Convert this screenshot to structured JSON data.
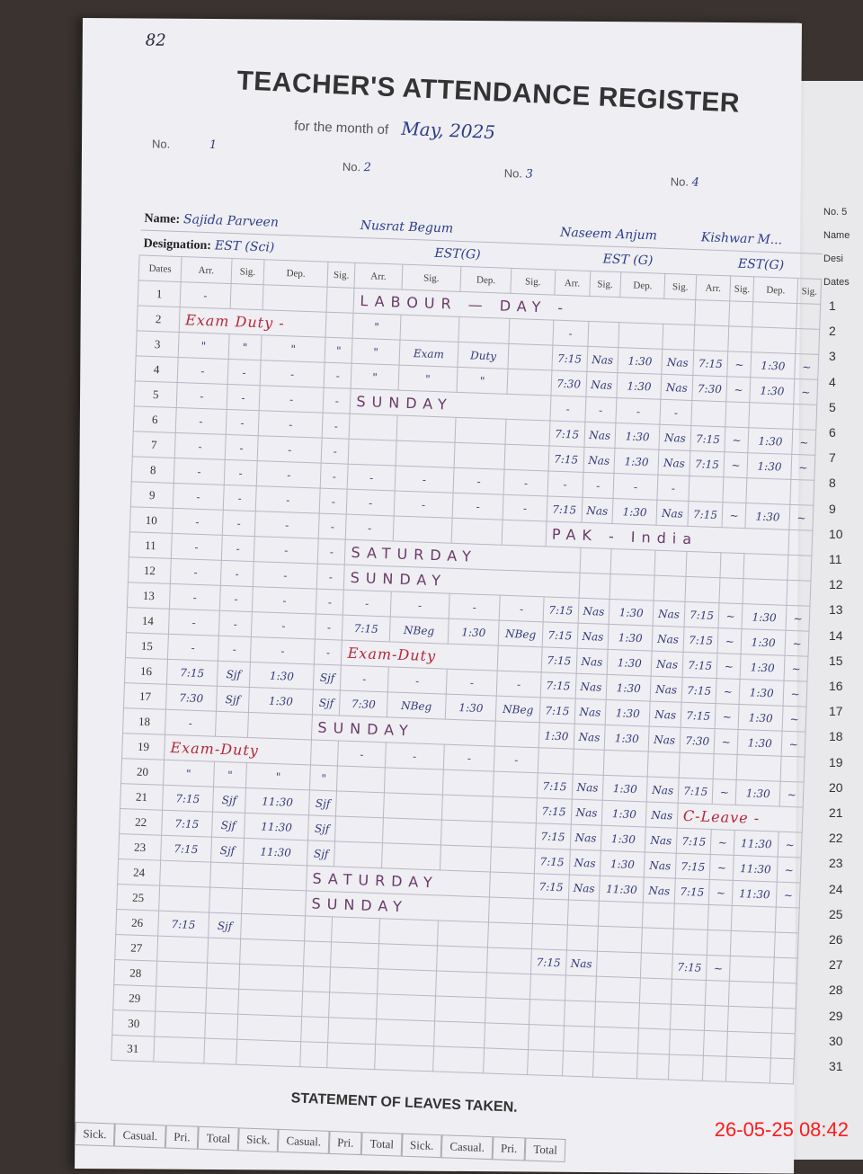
{
  "page_number": "82",
  "title": "TEACHER'S ATTENDANCE REGISTER",
  "month_label": "for the month of",
  "month_value": "May, 2025",
  "teacher_numbers": [
    {
      "label": "No.",
      "value": "1"
    },
    {
      "label": "No.",
      "value": "2"
    },
    {
      "label": "No.",
      "value": "3"
    },
    {
      "label": "No.",
      "value": "4"
    }
  ],
  "name_label": "Name:",
  "designation_label": "Designation:",
  "teachers": [
    {
      "name": "Sajida Parveen",
      "designation": "EST (Sci)"
    },
    {
      "name": "Nusrat Begum",
      "designation": "EST(G)"
    },
    {
      "name": "Naseem Anjum",
      "designation": "EST (G)"
    },
    {
      "name": "Kishwar M...",
      "designation": "EST(G)"
    }
  ],
  "columns": [
    "Dates",
    "Arr.",
    "Sig.",
    "Dep.",
    "Sig.",
    "Arr.",
    "Sig.",
    "Dep.",
    "Sig.",
    "Arr.",
    "Sig.",
    "Dep.",
    "Sig.",
    "Arr.",
    "Sig.",
    "Dep.",
    "Sig."
  ],
  "rows": [
    {
      "d": "1",
      "c": [
        "-",
        "",
        "",
        "",
        "",
        "",
        "",
        "",
        "",
        "",
        "",
        "",
        "",
        "",
        "",
        ""
      ],
      "notes": [
        {
          "from": 5,
          "span": 8,
          "text": "LABOUR — DAY -"
        }
      ]
    },
    {
      "d": "2",
      "c": [
        "-",
        "",
        "",
        "",
        "\"",
        "",
        "",
        "",
        "-",
        "",
        "",
        "",
        "",
        "",
        "",
        ""
      ],
      "notes": [
        {
          "from": 1,
          "span": 3,
          "text": "Exam Duty -",
          "red": true
        }
      ]
    },
    {
      "d": "3",
      "c": [
        "\"",
        "\"",
        "\"",
        "\"",
        "\"",
        "Exam",
        "Duty",
        "",
        "7:15",
        "Nas",
        "1:30",
        "Nas",
        "7:15",
        "~",
        "1:30",
        "~"
      ]
    },
    {
      "d": "4",
      "c": [
        "-",
        "-",
        "-",
        "-",
        "\"",
        "\"",
        "\"",
        "",
        "7:30",
        "Nas",
        "1:30",
        "Nas",
        "7:30",
        "~",
        "1:30",
        "~"
      ]
    },
    {
      "d": "5",
      "c": [
        "-",
        "-",
        "-",
        "-",
        "-",
        "",
        "",
        "",
        "-",
        "-",
        "-",
        "-",
        "",
        "",
        "",
        ""
      ],
      "notes": [
        {
          "from": 5,
          "span": 4,
          "text": "SUNDAY"
        }
      ]
    },
    {
      "d": "6",
      "c": [
        "-",
        "-",
        "-",
        "-",
        "",
        "",
        "",
        "",
        "7:15",
        "Nas",
        "1:30",
        "Nas",
        "7:15",
        "~",
        "1:30",
        "~"
      ]
    },
    {
      "d": "7",
      "c": [
        "-",
        "-",
        "-",
        "-",
        "",
        "",
        "",
        "",
        "7:15",
        "Nas",
        "1:30",
        "Nas",
        "7:15",
        "~",
        "1:30",
        "~"
      ]
    },
    {
      "d": "8",
      "c": [
        "-",
        "-",
        "-",
        "-",
        "-",
        "-",
        "-",
        "-",
        "-",
        "-",
        "-",
        "-",
        "",
        "",
        "",
        ""
      ]
    },
    {
      "d": "9",
      "c": [
        "-",
        "-",
        "-",
        "-",
        "-",
        "-",
        "-",
        "-",
        "7:15",
        "Nas",
        "1:30",
        "Nas",
        "7:15",
        "~",
        "1:30",
        "~"
      ]
    },
    {
      "d": "10",
      "c": [
        "-",
        "-",
        "-",
        "-",
        "-",
        "",
        "",
        "",
        "",
        "",
        "",
        "",
        "",
        "",
        "",
        ""
      ],
      "notes": [
        {
          "from": 9,
          "span": 7,
          "text": "PAK - India"
        }
      ]
    },
    {
      "d": "11",
      "c": [
        "-",
        "-",
        "-",
        "-",
        "-",
        "",
        "",
        "",
        "",
        "",
        "",
        "",
        "",
        "",
        "",
        ""
      ],
      "notes": [
        {
          "from": 5,
          "span": 5,
          "text": "SATURDAY"
        }
      ]
    },
    {
      "d": "12",
      "c": [
        "-",
        "-",
        "-",
        "-",
        "-",
        "",
        "",
        "",
        "",
        "",
        "",
        "",
        "",
        "",
        "",
        ""
      ],
      "notes": [
        {
          "from": 5,
          "span": 5,
          "text": "SUNDAY"
        }
      ]
    },
    {
      "d": "13",
      "c": [
        "-",
        "-",
        "-",
        "-",
        "-",
        "-",
        "-",
        "-",
        "7:15",
        "Nas",
        "1:30",
        "Nas",
        "7:15",
        "~",
        "1:30",
        "~"
      ]
    },
    {
      "d": "14",
      "c": [
        "-",
        "-",
        "-",
        "-",
        "7:15",
        "NBeg",
        "1:30",
        "NBeg",
        "7:15",
        "Nas",
        "1:30",
        "Nas",
        "7:15",
        "~",
        "1:30",
        "~"
      ]
    },
    {
      "d": "15",
      "c": [
        "-",
        "-",
        "-",
        "-",
        "",
        "",
        "",
        "",
        "7:15",
        "Nas",
        "1:30",
        "Nas",
        "7:15",
        "~",
        "1:30",
        "~"
      ],
      "notes": [
        {
          "from": 5,
          "span": 3,
          "text": "Exam-Duty",
          "red": true
        }
      ]
    },
    {
      "d": "16",
      "c": [
        "7:15",
        "Sjf",
        "1:30",
        "Sjf",
        "-",
        "-",
        "-",
        "-",
        "7:15",
        "Nas",
        "1:30",
        "Nas",
        "7:15",
        "~",
        "1:30",
        "~"
      ]
    },
    {
      "d": "17",
      "c": [
        "7:30",
        "Sjf",
        "1:30",
        "Sjf",
        "7:30",
        "NBeg",
        "1:30",
        "NBeg",
        "7:15",
        "Nas",
        "1:30",
        "Nas",
        "7:15",
        "~",
        "1:30",
        "~"
      ]
    },
    {
      "d": "18",
      "c": [
        "-",
        "",
        "",
        "",
        "",
        "",
        "",
        "",
        "1:30",
        "Nas",
        "1:30",
        "Nas",
        "7:30",
        "~",
        "1:30",
        "~"
      ],
      "notes": [
        {
          "from": 4,
          "span": 4,
          "text": "SUNDAY"
        }
      ]
    },
    {
      "d": "19",
      "c": [
        "-",
        "",
        "",
        "",
        "-",
        "-",
        "-",
        "-",
        "",
        "",
        "",
        "",
        "",
        "",
        "",
        ""
      ],
      "notes": [
        {
          "from": 1,
          "span": 3,
          "text": "Exam-Duty",
          "red": true
        }
      ]
    },
    {
      "d": "20",
      "c": [
        "\"",
        "\"",
        "\"",
        "\"",
        "",
        "",
        "",
        "",
        "7:15",
        "Nas",
        "1:30",
        "Nas",
        "7:15",
        "~",
        "1:30",
        "~"
      ]
    },
    {
      "d": "21",
      "c": [
        "7:15",
        "Sjf",
        "11:30",
        "Sjf",
        "",
        "",
        "",
        "",
        "7:15",
        "Nas",
        "1:30",
        "Nas",
        "",
        "",
        "",
        ""
      ],
      "notes": [
        {
          "from": 13,
          "span": 4,
          "text": "C-Leave -",
          "red": true
        }
      ]
    },
    {
      "d": "22",
      "c": [
        "7:15",
        "Sjf",
        "11:30",
        "Sjf",
        "",
        "",
        "",
        "",
        "7:15",
        "Nas",
        "1:30",
        "Nas",
        "7:15",
        "~",
        "11:30",
        "~"
      ]
    },
    {
      "d": "23",
      "c": [
        "7:15",
        "Sjf",
        "11:30",
        "Sjf",
        "",
        "",
        "",
        "",
        "7:15",
        "Nas",
        "1:30",
        "Nas",
        "7:15",
        "~",
        "11:30",
        "~"
      ]
    },
    {
      "d": "24",
      "c": [
        "",
        "",
        "",
        "",
        "",
        "",
        "",
        "",
        "7:15",
        "Nas",
        "11:30",
        "Nas",
        "7:15",
        "~",
        "11:30",
        "~"
      ],
      "notes": [
        {
          "from": 4,
          "span": 4,
          "text": "SATURDAY"
        }
      ]
    },
    {
      "d": "25",
      "c": [
        "",
        "",
        "",
        "",
        "",
        "",
        "",
        "",
        "",
        "",
        "",
        "",
        "",
        "",
        "",
        ""
      ],
      "notes": [
        {
          "from": 4,
          "span": 4,
          "text": "SUNDAY"
        }
      ]
    },
    {
      "d": "26",
      "c": [
        "7:15",
        "Sjf",
        "",
        "",
        "",
        "",
        "",
        "",
        "",
        "",
        "",
        "",
        "",
        "",
        "",
        ""
      ]
    },
    {
      "d": "27",
      "c": [
        "",
        "",
        "",
        "",
        "",
        "",
        "",
        "",
        "7:15",
        "Nas",
        "",
        "",
        "7:15",
        "~",
        "",
        ""
      ]
    },
    {
      "d": "28",
      "c": [
        "",
        "",
        "",
        "",
        "",
        "",
        "",
        "",
        "",
        "",
        "",
        "",
        "",
        "",
        "",
        ""
      ]
    },
    {
      "d": "29",
      "c": [
        "",
        "",
        "",
        "",
        "",
        "",
        "",
        "",
        "",
        "",
        "",
        "",
        "",
        "",
        "",
        ""
      ]
    },
    {
      "d": "30",
      "c": [
        "",
        "",
        "",
        "",
        "",
        "",
        "",
        "",
        "",
        "",
        "",
        "",
        "",
        "",
        "",
        ""
      ]
    },
    {
      "d": "31",
      "c": [
        "",
        "",
        "",
        "",
        "",
        "",
        "",
        "",
        "",
        "",
        "",
        "",
        "",
        "",
        "",
        ""
      ]
    }
  ],
  "statement_title": "STATEMENT OF LEAVES TAKEN.",
  "leave_columns": [
    "Sick.",
    "Casual.",
    "Pri.",
    "Total",
    "Sick.",
    "Casual.",
    "Pri.",
    "Total",
    "Sick.",
    "Casual.",
    "Pri.",
    "Total"
  ],
  "next_page": {
    "labels": [
      "No. 5",
      "Name",
      "Desi",
      "Dates"
    ],
    "dates": [
      "1",
      "2",
      "3",
      "4",
      "5",
      "6",
      "7",
      "8",
      "9",
      "10",
      "11",
      "12",
      "13",
      "14",
      "15",
      "16",
      "17",
      "18",
      "19",
      "20",
      "21",
      "22",
      "23",
      "24",
      "25",
      "26",
      "27",
      "28",
      "29",
      "30",
      "31"
    ]
  },
  "timestamp": "26-05-25  08:42",
  "colors": {
    "ink_blue": "#2c3c8a",
    "ink_red": "#b4283a",
    "timestamp": "#ff1a1a"
  }
}
